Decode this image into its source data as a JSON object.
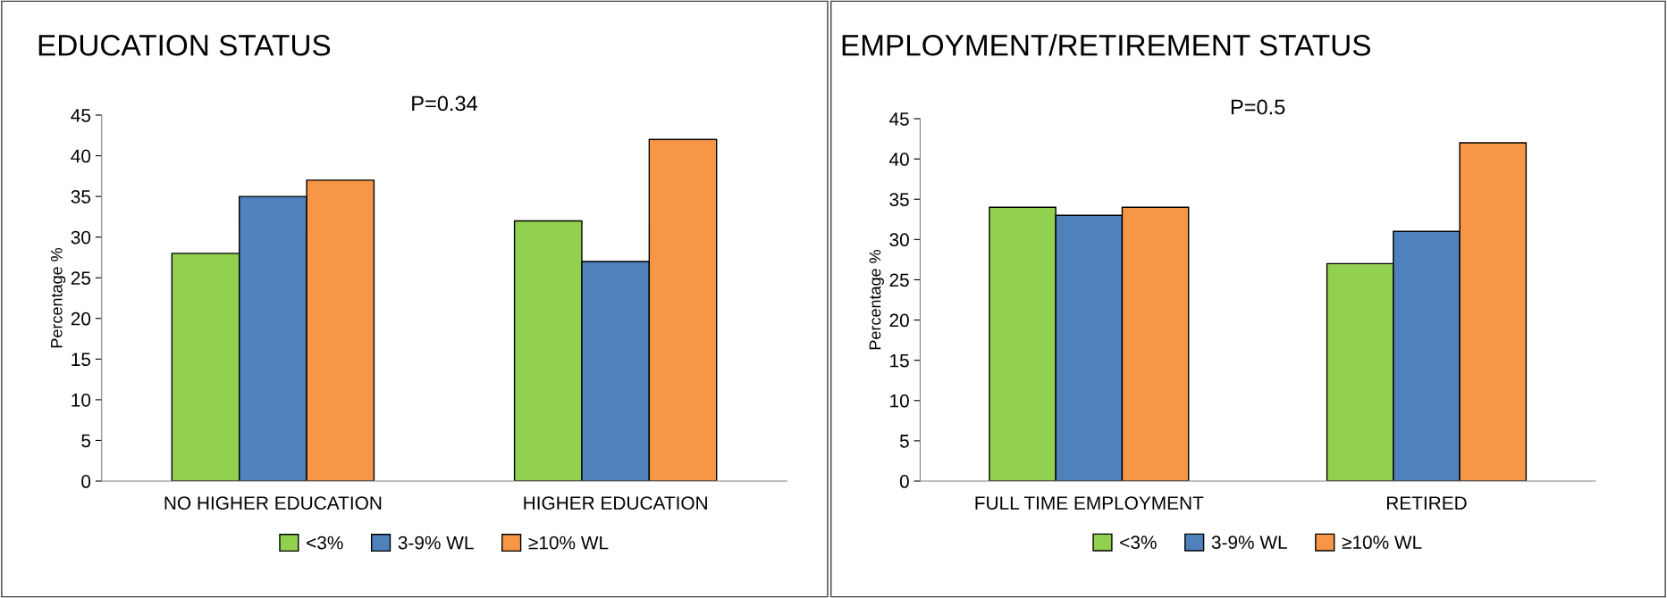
{
  "chart_data": [
    {
      "type": "bar",
      "title": "EDUCATION STATUS",
      "ylabel": "Percentage %",
      "annotations": [
        "P=0.34"
      ],
      "categories": [
        "NO HIGHER EDUCATION",
        "HIGHER EDUCATION"
      ],
      "ylim": [
        0,
        45
      ],
      "yticks": [
        0,
        5,
        10,
        15,
        20,
        25,
        30,
        35,
        40,
        45
      ],
      "grid": false,
      "legend": "bottom",
      "series": [
        {
          "name": "<3%",
          "color": "#92d050",
          "values": [
            28,
            32
          ]
        },
        {
          "name": "3-9% WL",
          "color": "#4f81bd",
          "values": [
            35,
            27
          ]
        },
        {
          "name": "≥10% WL",
          "color": "#f79646",
          "values": [
            37,
            42
          ]
        }
      ]
    },
    {
      "type": "bar",
      "title": "EMPLOYMENT/RETIREMENT STATUS",
      "ylabel": "Percentage %",
      "annotations": [
        "P=0.5"
      ],
      "categories": [
        "FULL TIME EMPLOYMENT",
        "RETIRED"
      ],
      "ylim": [
        0,
        45
      ],
      "yticks": [
        0,
        5,
        10,
        15,
        20,
        25,
        30,
        35,
        40,
        45
      ],
      "grid": false,
      "legend": "bottom",
      "series": [
        {
          "name": "<3%",
          "color": "#92d050",
          "values": [
            34,
            27
          ]
        },
        {
          "name": "3-9% WL",
          "color": "#4f81bd",
          "values": [
            33,
            31
          ]
        },
        {
          "name": "≥10% WL",
          "color": "#f79646",
          "values": [
            34,
            42
          ]
        }
      ]
    }
  ]
}
